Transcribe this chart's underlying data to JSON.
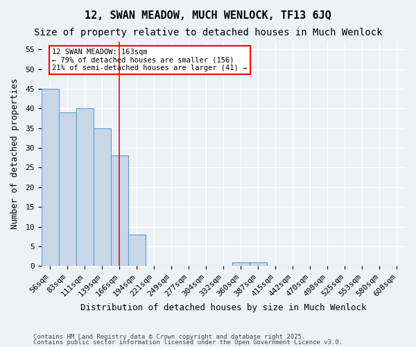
{
  "title1": "12, SWAN MEADOW, MUCH WENLOCK, TF13 6JQ",
  "title2": "Size of property relative to detached houses in Much Wenlock",
  "xlabel": "Distribution of detached houses by size in Much Wenlock",
  "ylabel": "Number of detached properties",
  "bin_labels": [
    "56sqm",
    "83sqm",
    "111sqm",
    "139sqm",
    "166sqm",
    "194sqm",
    "221sqm",
    "249sqm",
    "277sqm",
    "304sqm",
    "332sqm",
    "360sqm",
    "387sqm",
    "415sqm",
    "442sqm",
    "470sqm",
    "498sqm",
    "525sqm",
    "553sqm",
    "580sqm",
    "608sqm"
  ],
  "bar_values": [
    45,
    39,
    40,
    35,
    28,
    8,
    0,
    0,
    0,
    0,
    0,
    1,
    1,
    0,
    0,
    0,
    0,
    0,
    0,
    0,
    0
  ],
  "bar_color": "#c8d8e8",
  "bar_edge_color": "#5b9bd5",
  "red_line_index": 4,
  "ylim": [
    0,
    57
  ],
  "yticks": [
    0,
    5,
    10,
    15,
    20,
    25,
    30,
    35,
    40,
    45,
    50,
    55
  ],
  "annotation_text": "12 SWAN MEADOW: 163sqm\n← 79% of detached houses are smaller (156)\n21% of semi-detached houses are larger (41) →",
  "footnote1": "Contains HM Land Registry data © Crown copyright and database right 2025.",
  "footnote2": "Contains public sector information licensed under the Open Government Licence v3.0.",
  "background_color": "#eef2f7",
  "plot_background": "#eef2f7",
  "grid_color": "#ffffff",
  "title_fontsize": 11,
  "subtitle_fontsize": 10,
  "axis_fontsize": 9,
  "tick_fontsize": 8,
  "annot_fontsize": 7.5,
  "footnote_fontsize": 6.5
}
